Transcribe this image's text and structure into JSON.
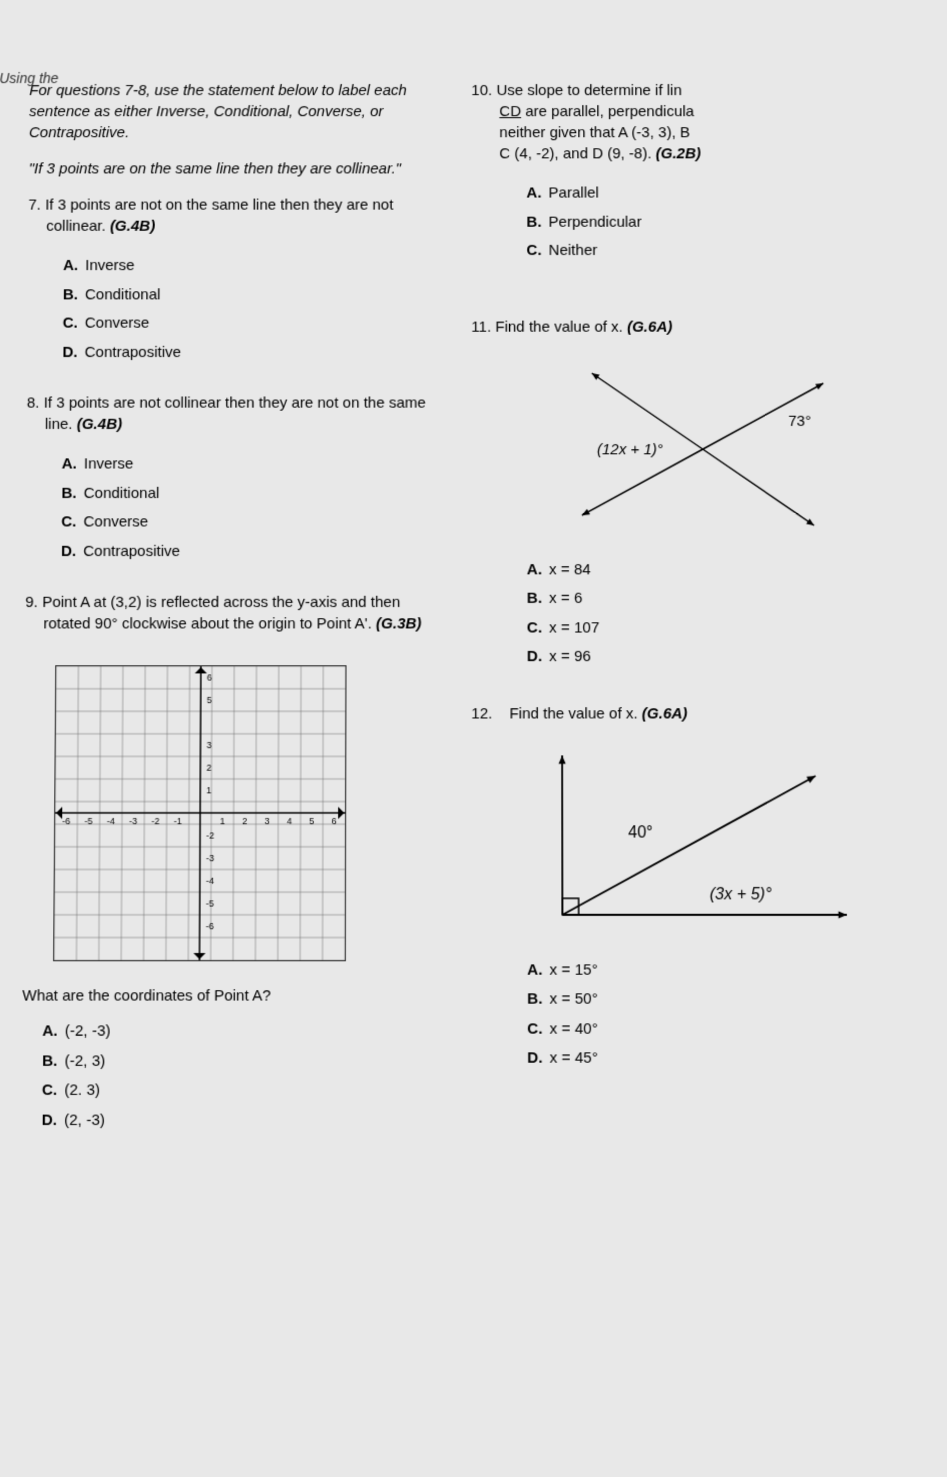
{
  "corner_text": "Using the",
  "left": {
    "instructions": "For questions 7-8, use the statement below to label each sentence as either Inverse, Conditional, Converse, or Contrapositive.",
    "statement": "\"If 3 points are on the same line then they are collinear.\"",
    "q7": {
      "num": "7.",
      "text": "If 3 points are not on the same line then they are not collinear.",
      "standard": "(G.4B)",
      "options": {
        "A": "Inverse",
        "B": "Conditional",
        "C": "Converse",
        "D": "Contrapositive"
      }
    },
    "q8": {
      "num": "8.",
      "text": "If 3 points are not collinear then they are not on the same line.",
      "standard": "(G.4B)",
      "options": {
        "A": "Inverse",
        "B": "Conditional",
        "C": "Converse",
        "D": "Contrapositive"
      }
    },
    "q9": {
      "num": "9.",
      "text": "Point A at (3,2) is reflected across the y-axis and then rotated 90° clockwise about the origin to Point A'.",
      "standard": "(G.3B)",
      "grid": {
        "xmin": -6,
        "xmax": 6,
        "ymin": -6,
        "ymax": 6,
        "cell_size": 22,
        "grid_color": "#666",
        "axis_color": "#000",
        "labels_x": [
          "-6",
          "-5",
          "-4",
          "-3",
          "-2",
          "-1",
          "",
          "1",
          "2",
          "3",
          "4",
          "5",
          "6"
        ],
        "labels_y": [
          "6",
          "5",
          "",
          "3",
          "2",
          "1",
          "",
          "-2",
          "-3",
          "-4",
          "-5",
          "-6"
        ]
      },
      "prompt": "What are the coordinates of Point A?",
      "options": {
        "A": "(-2, -3)",
        "B": "(-2, 3)",
        "C": "(2. 3)",
        "D": "(2, -3)"
      }
    }
  },
  "right": {
    "q10": {
      "num": "10.",
      "text_l1": "Use slope to determine if lin",
      "text_l2": "CD are parallel, perpendicula",
      "text_l3": "neither given that A (-3, 3), B",
      "text_l4": "C (4, -2), and D (9, -8).",
      "standard": "(G.2B)",
      "options": {
        "A": "Parallel",
        "B": "Perpendicular",
        "C": "Neither"
      }
    },
    "q11": {
      "num": "11.",
      "text": "Find the value of x.",
      "standard": "(G.6A)",
      "diagram": {
        "left_label": "(12x + 1)°",
        "right_label": "73°",
        "line_color": "#000"
      },
      "options": {
        "A": "x = 84",
        "B": "x = 6",
        "C": "x = 107",
        "D": "x = 96"
      }
    },
    "q12": {
      "num": "12.",
      "text": "Find the value of x.",
      "standard": "(G.6A)",
      "diagram": {
        "angle_label_1": "40°",
        "angle_label_2": "(3x + 5)°",
        "line_color": "#000"
      },
      "options": {
        "A": "x = 15°",
        "B": "x = 50°",
        "C": "x = 40°",
        "D": "x = 45°"
      }
    }
  }
}
